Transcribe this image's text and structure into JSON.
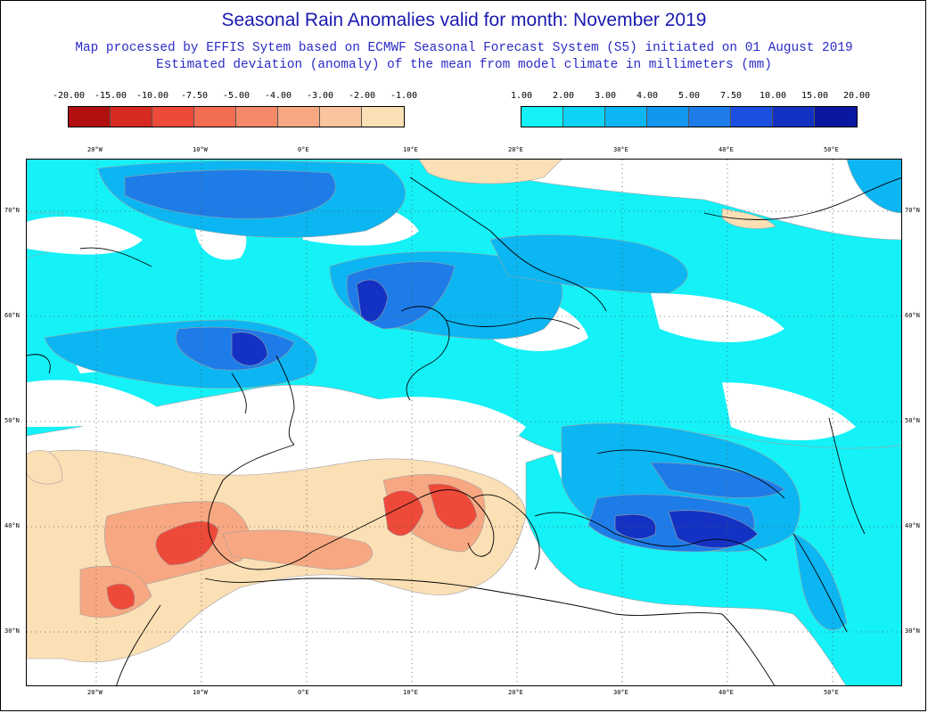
{
  "title": "Seasonal Rain Anomalies valid for month: November 2019",
  "subtitle_line1": "Map processed by EFFIS Sytem based on ECMWF Seasonal Forecast System (S5) initiated on 01 August 2019",
  "subtitle_line2": "Estimated deviation (anomaly) of the mean from model climate in millimeters (mm)",
  "legend_negative": {
    "labels": [
      "-20.00",
      "-15.00",
      "-10.00",
      "-7.50",
      "-5.00",
      "-4.00",
      "-3.00",
      "-2.00",
      "-1.00"
    ],
    "colors": [
      "#b0100f",
      "#d62a20",
      "#ee4a3a",
      "#f36d53",
      "#f68a68",
      "#f7a882",
      "#f9c49e",
      "#fbdfb5"
    ]
  },
  "legend_positive": {
    "labels": [
      "1.00",
      "2.00",
      "3.00",
      "4.00",
      "5.00",
      "7.50",
      "10.00",
      "15.00",
      "20.00"
    ],
    "colors": [
      "#14f1f7",
      "#0ed3f6",
      "#0bb6f2",
      "#1197ee",
      "#1d7ce8",
      "#1b4fe0",
      "#1332c4",
      "#0a17a0"
    ]
  },
  "map": {
    "longitude_labels": [
      "20°W",
      "10°W",
      "0°E",
      "10°E",
      "20°E",
      "30°E",
      "40°E",
      "50°E"
    ],
    "latitude_labels": [
      "70°N",
      "60°N",
      "50°N",
      "40°N",
      "30°N"
    ],
    "colors": {
      "dry_light": "#fbdfb5",
      "dry_mid": "#f7a882",
      "dry_strong": "#ee4a3a",
      "wet_light": "#14f1f7",
      "wet_mid": "#0bb6f2",
      "wet_strong": "#1d7ce8",
      "wet_very": "#1332c4",
      "coast": "#000000",
      "grid": "#555555"
    }
  }
}
